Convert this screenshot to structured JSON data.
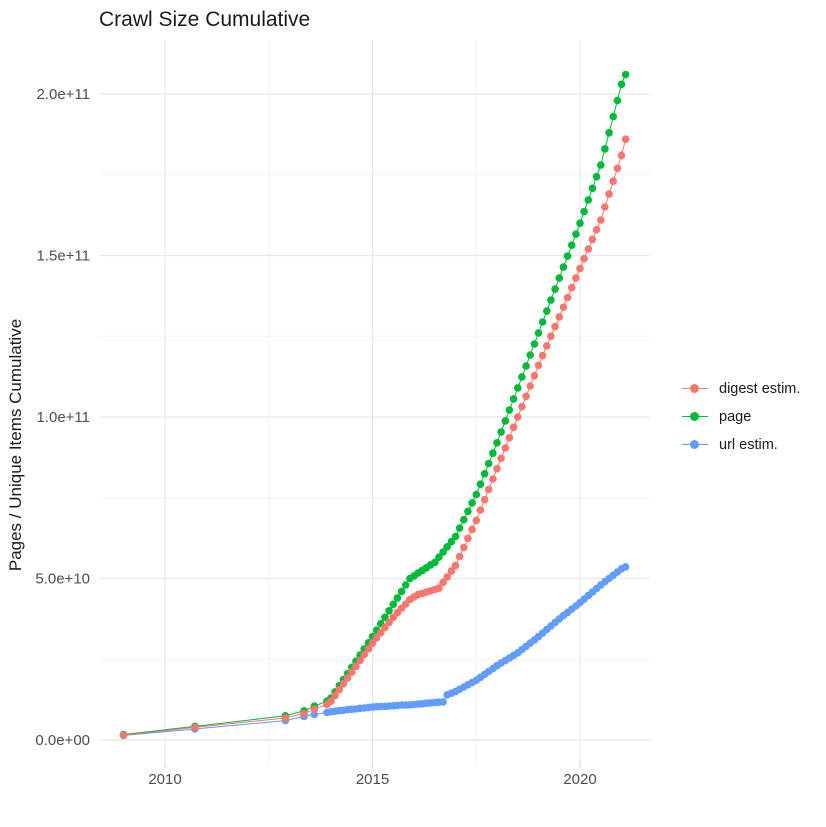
{
  "title": "Crawl Size Cumulative",
  "chart_data": {
    "type": "scatter",
    "title": "Crawl Size Cumulative",
    "xlabel": "",
    "ylabel": "Pages / Unique Items Cumulative",
    "value_unit": "1e9 (billions of pages / unique items)",
    "xlim": [
      2008.4,
      2021.7
    ],
    "ylim": [
      -7000000000.0,
      217000000000.0
    ],
    "grid": "major and minor, light grey on white",
    "legend_position": "right",
    "x_ticks": [
      {
        "v": 2010,
        "label": "2010"
      },
      {
        "v": 2015,
        "label": "2015"
      },
      {
        "v": 2020,
        "label": "2020"
      }
    ],
    "x_minor": [
      2012.5,
      2017.5
    ],
    "y_ticks": [
      {
        "v": 0,
        "label": "0.0e+00"
      },
      {
        "v": 50,
        "label": "5.0e+10"
      },
      {
        "v": 100,
        "label": "1.0e+11"
      },
      {
        "v": 150,
        "label": "1.5e+11"
      },
      {
        "v": 200,
        "label": "2.0e+11"
      }
    ],
    "y_minor": [
      25,
      75,
      125,
      175
    ],
    "series": [
      {
        "id": "digest-estim",
        "name": "digest estim.",
        "color": "#F8766D",
        "early_points": [
          [
            2009.0,
            1.5
          ],
          [
            2010.72,
            3.9
          ],
          [
            2012.9,
            6.8
          ],
          [
            2013.35,
            8.2
          ],
          [
            2013.6,
            9.5
          ],
          [
            2013.9,
            11
          ]
        ],
        "dense": {
          "start_year": 2014.0,
          "step": 0.1,
          "values": [
            12,
            13.8,
            15.6,
            17.4,
            19.2,
            21,
            22.8,
            24.6,
            26.4,
            28.2,
            30,
            31.6,
            33.2,
            34.8,
            36.4,
            38,
            39.4,
            40.8,
            42.1,
            43.5,
            44.3,
            45,
            45.4,
            45.8,
            46.2,
            46.6,
            47,
            48.8,
            50.5,
            52.3,
            54,
            56.8,
            59.6,
            62.4,
            65.2,
            68,
            71.2,
            74.4,
            77.6,
            80.8,
            84,
            87.2,
            90.4,
            93.6,
            96.8,
            100,
            103.2,
            106.4,
            109.6,
            112.8,
            116,
            119,
            122,
            125,
            128,
            131,
            134,
            137,
            140,
            143,
            146,
            149,
            152,
            155,
            158,
            161,
            165,
            169,
            173,
            177,
            181
          ]
        },
        "last_point": [
          2021.1,
          186
        ]
      },
      {
        "id": "page",
        "name": "page",
        "color": "#00BA38",
        "early_points": [
          [
            2009.0,
            1.7
          ],
          [
            2010.72,
            4.2
          ],
          [
            2012.9,
            7.5
          ],
          [
            2013.35,
            9
          ],
          [
            2013.6,
            10.5
          ],
          [
            2013.9,
            12
          ]
        ],
        "dense": {
          "start_year": 2014.0,
          "step": 0.1,
          "values": [
            13,
            14.9,
            16.8,
            18.7,
            20.6,
            22.5,
            24.4,
            26.3,
            28.2,
            30.1,
            32,
            34,
            36,
            38,
            40,
            42,
            44,
            46,
            48,
            50,
            50.8,
            51.7,
            52.5,
            53.3,
            54.2,
            55,
            56.6,
            58.2,
            59.8,
            61.4,
            63,
            65.6,
            68.2,
            70.8,
            73.4,
            76,
            79.2,
            82.4,
            85.6,
            88.8,
            92,
            95.4,
            98.8,
            102.2,
            105.6,
            109,
            112.4,
            115.8,
            119.2,
            122.6,
            126,
            129.4,
            132.8,
            136.2,
            139.6,
            143,
            146.4,
            149.8,
            153.2,
            156.6,
            160,
            163.6,
            167.2,
            170.8,
            174.4,
            178,
            183,
            188,
            193,
            198,
            203
          ]
        },
        "last_point": [
          2021.1,
          206
        ]
      },
      {
        "id": "url-estim",
        "name": "url estim.",
        "color": "#619CFF",
        "early_points": [
          [
            2009.0,
            1.4
          ],
          [
            2010.72,
            3.4
          ],
          [
            2012.9,
            6.0
          ],
          [
            2013.35,
            7.3
          ],
          [
            2013.6,
            7.9
          ],
          [
            2013.9,
            8.5
          ]
        ],
        "dense": {
          "start_year": 2014.0,
          "step": 0.1,
          "values": [
            8.8,
            8.9,
            9.1,
            9.2,
            9.4,
            9.5,
            9.6,
            9.8,
            9.9,
            10.1,
            10.2,
            10.3,
            10.4,
            10.4,
            10.5,
            10.6,
            10.7,
            10.8,
            10.8,
            10.9,
            11,
            11.1,
            11.2,
            11.4,
            11.5,
            11.6,
            11.7,
            11.8,
            14,
            14.5,
            15,
            15.7,
            16.4,
            17.1,
            17.8,
            18.5,
            19.4,
            20.3,
            21.2,
            22.1,
            23,
            23.8,
            24.6,
            25.4,
            26.2,
            27,
            28,
            29,
            30,
            31,
            32,
            33.1,
            34.2,
            35.3,
            36.4,
            37.5,
            38.5,
            39.5,
            40.5,
            41.5,
            42.5,
            43.6,
            44.7,
            45.8,
            46.9,
            48,
            49,
            50,
            51,
            52,
            53
          ]
        },
        "last_point": [
          2021.1,
          53.6
        ]
      }
    ]
  }
}
